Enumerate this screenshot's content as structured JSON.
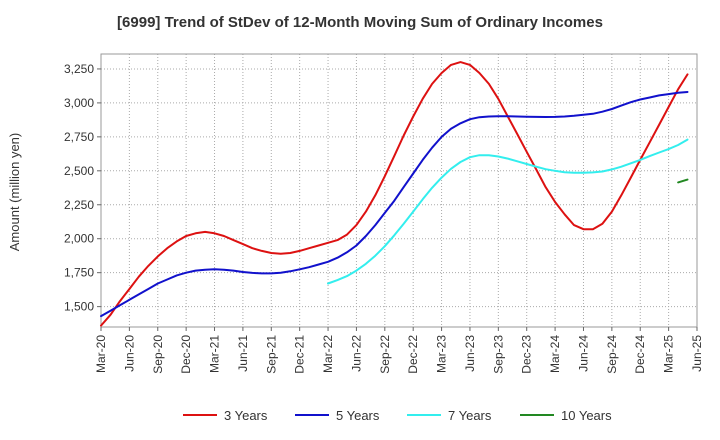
{
  "chart_data": {
    "type": "line",
    "title": "[6999]  Trend of StDev of 12-Month Moving Sum of Ordinary Incomes",
    "xlabel": "",
    "ylabel": "Amount (million yen)",
    "ylim": [
      1350,
      3360
    ],
    "yticks": [
      1500,
      1750,
      2000,
      2250,
      2500,
      2750,
      3000,
      3250
    ],
    "ytick_labels": [
      "1,500",
      "1,750",
      "2,000",
      "2,250",
      "2,500",
      "2,750",
      "3,000",
      "3,250"
    ],
    "xtick_labels": [
      "Mar-20",
      "Jun-20",
      "Sep-20",
      "Dec-20",
      "Mar-21",
      "Jun-21",
      "Sep-21",
      "Dec-21",
      "Mar-22",
      "Jun-22",
      "Sep-22",
      "Dec-22",
      "Mar-23",
      "Jun-23",
      "Sep-23",
      "Dec-23",
      "Mar-24",
      "Jun-24",
      "Sep-24",
      "Dec-24",
      "Mar-25",
      "Jun-25"
    ],
    "grid": true,
    "legend_position": "bottom",
    "series": [
      {
        "name": "3 Years",
        "color": "#dd1111",
        "start_month": 0,
        "values": [
          1360,
          1440,
          1540,
          1630,
          1720,
          1800,
          1870,
          1930,
          1980,
          2020,
          2040,
          2050,
          2040,
          2020,
          1990,
          1960,
          1930,
          1910,
          1895,
          1890,
          1895,
          1910,
          1930,
          1950,
          1970,
          1990,
          2030,
          2100,
          2200,
          2320,
          2460,
          2610,
          2760,
          2900,
          3030,
          3140,
          3220,
          3280,
          3300,
          3280,
          3220,
          3140,
          3030,
          2900,
          2770,
          2640,
          2510,
          2380,
          2270,
          2180,
          2100,
          2070,
          2070,
          2110,
          2200,
          2320,
          2450,
          2580,
          2710,
          2840,
          2970,
          3100,
          3210
        ]
      },
      {
        "name": "5 Years",
        "color": "#1111cc",
        "start_month": 0,
        "values": [
          1430,
          1470,
          1510,
          1550,
          1590,
          1630,
          1670,
          1700,
          1730,
          1750,
          1765,
          1772,
          1775,
          1772,
          1765,
          1755,
          1748,
          1745,
          1745,
          1750,
          1760,
          1775,
          1790,
          1810,
          1830,
          1860,
          1900,
          1950,
          2020,
          2100,
          2190,
          2280,
          2380,
          2480,
          2580,
          2670,
          2750,
          2810,
          2850,
          2880,
          2895,
          2900,
          2902,
          2902,
          2900,
          2898,
          2897,
          2896,
          2897,
          2900,
          2905,
          2912,
          2920,
          2935,
          2955,
          2980,
          3005,
          3025,
          3040,
          3055,
          3065,
          3075,
          3080
        ]
      },
      {
        "name": "7 Years",
        "color": "#33eeee",
        "start_month": 24,
        "values": [
          1670,
          1695,
          1725,
          1765,
          1815,
          1875,
          1945,
          2025,
          2110,
          2200,
          2290,
          2375,
          2450,
          2515,
          2565,
          2600,
          2615,
          2615,
          2605,
          2590,
          2570,
          2550,
          2530,
          2512,
          2500,
          2490,
          2485,
          2485,
          2488,
          2495,
          2510,
          2530,
          2555,
          2580,
          2608,
          2635,
          2660,
          2690,
          2730
        ]
      },
      {
        "name": "10 Years",
        "color": "#228822",
        "start_month": 61,
        "values": [
          2415,
          2435
        ]
      }
    ]
  }
}
